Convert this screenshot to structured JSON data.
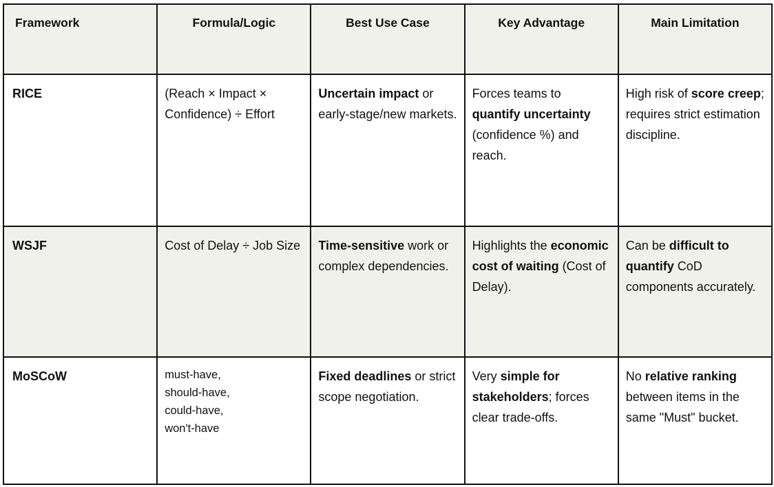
{
  "headers": [
    "Framework",
    "Formula/Logic",
    "Best Use Case",
    "Key Advantage",
    "Main Limitation"
  ],
  "rows": [
    {
      "framework": "RICE",
      "formula": [
        {
          "t": "(Reach × Impact × Confidence) ÷ Effort",
          "b": false
        }
      ],
      "use_case": [
        {
          "t": "Uncertain impact",
          "b": true
        },
        {
          "t": " or early-stage/new markets.",
          "b": false
        }
      ],
      "advantage": [
        {
          "t": "Forces teams to ",
          "b": false
        },
        {
          "t": "quantify uncertainty",
          "b": true
        },
        {
          "t": " (confidence %) and reach.",
          "b": false
        }
      ],
      "limitation": [
        {
          "t": "High risk of ",
          "b": false
        },
        {
          "t": "score creep",
          "b": true
        },
        {
          "t": "; requires strict estimation discipline.",
          "b": false
        }
      ]
    },
    {
      "framework": "WSJF",
      "formula": [
        {
          "t": "Cost of Delay ÷ Job Size",
          "b": false
        }
      ],
      "use_case": [
        {
          "t": "Time-sensitive",
          "b": true
        },
        {
          "t": " work or complex dependencies.",
          "b": false
        }
      ],
      "advantage": [
        {
          "t": "Highlights the ",
          "b": false
        },
        {
          "t": "economic cost of waiting",
          "b": true
        },
        {
          "t": " (Cost of Delay).",
          "b": false
        }
      ],
      "limitation": [
        {
          "t": "Can be ",
          "b": false
        },
        {
          "t": "difficult to quantify",
          "b": true
        },
        {
          "t": " CoD components accurately.",
          "b": false
        }
      ]
    },
    {
      "framework": "MoSCoW",
      "formula": [
        {
          "t": "must-have,",
          "b": false,
          "br": true
        },
        {
          "t": "should-have,",
          "b": false,
          "br": true
        },
        {
          "t": "could-have,",
          "b": false,
          "br": true
        },
        {
          "t": "won't-have",
          "b": false
        }
      ],
      "use_case": [
        {
          "t": "Fixed deadlines",
          "b": true
        },
        {
          "t": " or strict scope negotiation.",
          "b": false
        }
      ],
      "advantage": [
        {
          "t": "Very ",
          "b": false
        },
        {
          "t": "simple for stakeholders",
          "b": true
        },
        {
          "t": "; forces clear trade-offs.",
          "b": false
        }
      ],
      "limitation": [
        {
          "t": "No ",
          "b": false
        },
        {
          "t": "relative ranking",
          "b": true
        },
        {
          "t": " between items in the same \"Must\" bucket.",
          "b": false
        }
      ]
    }
  ]
}
